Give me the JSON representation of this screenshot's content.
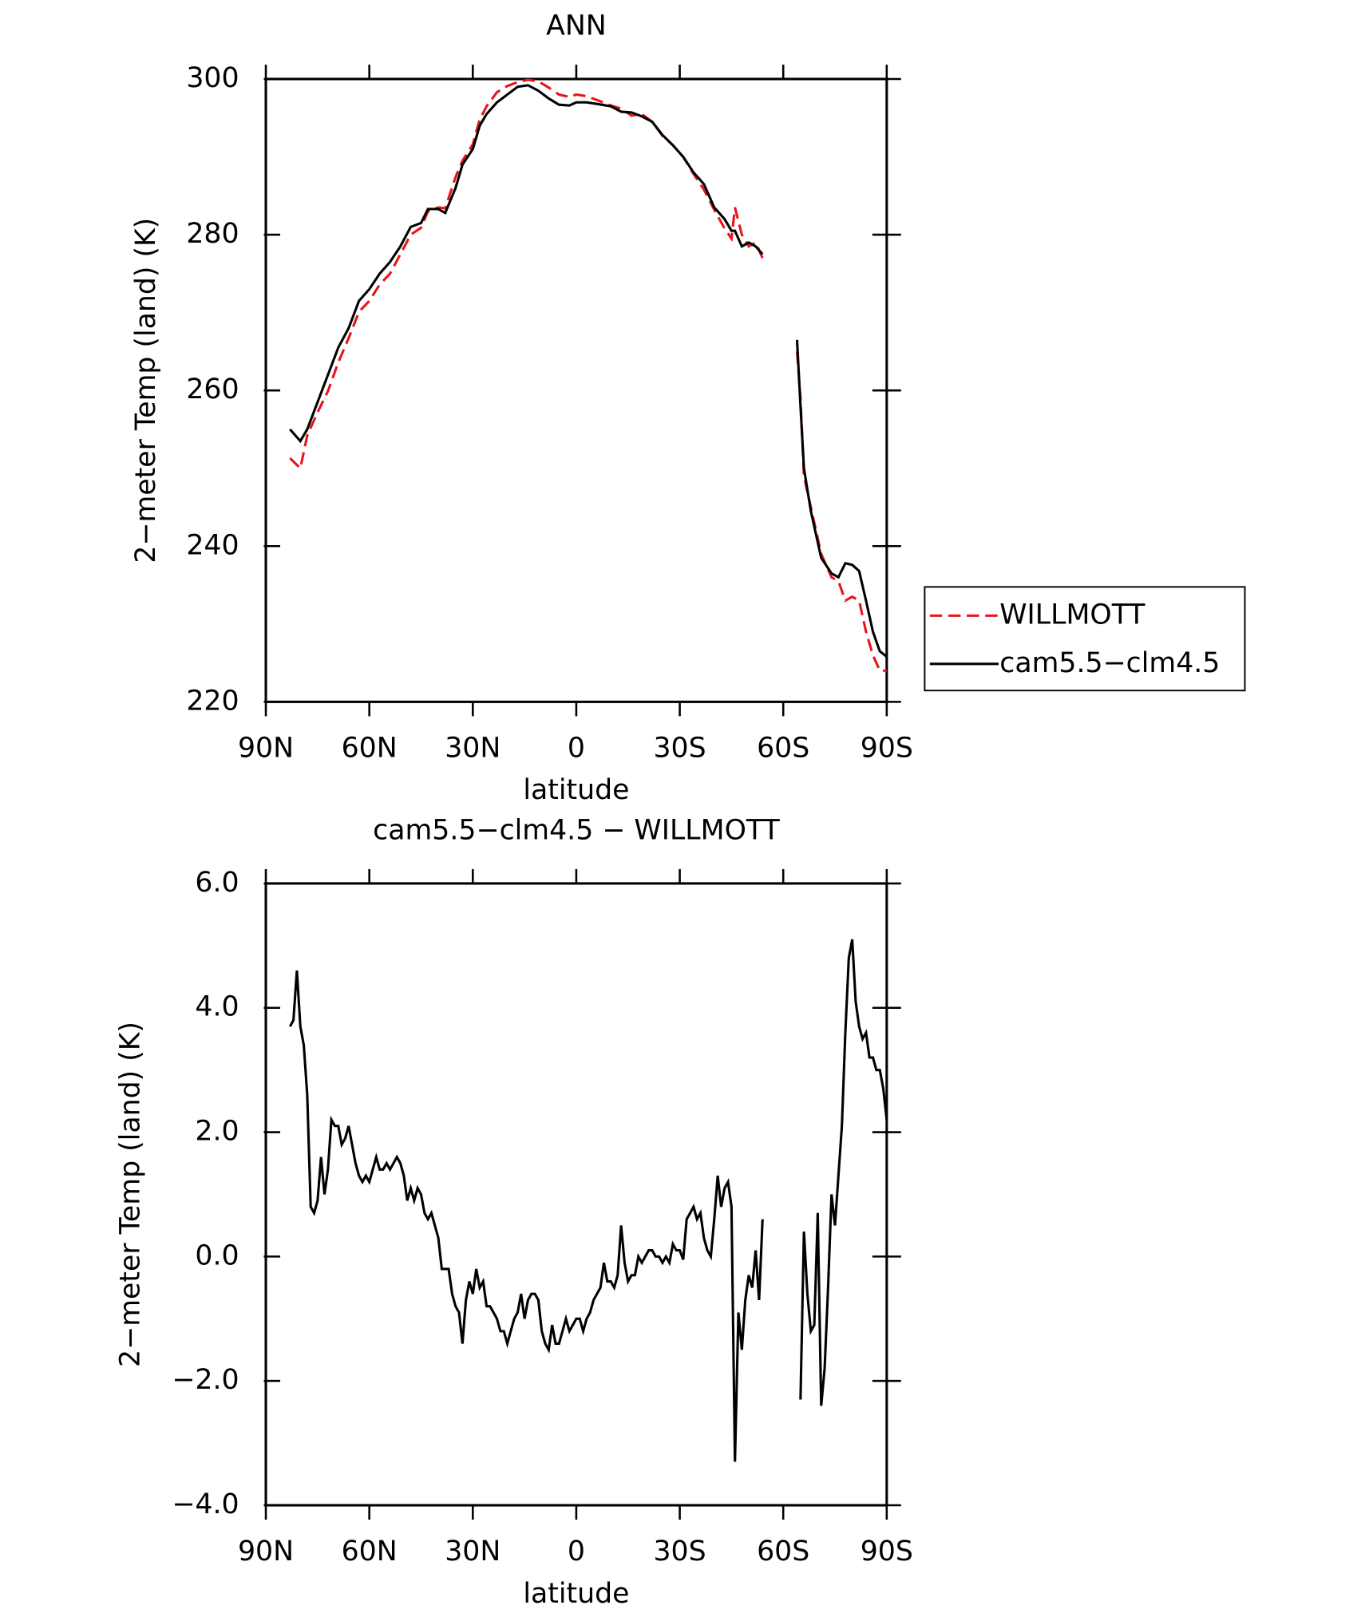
{
  "chart_data": [
    {
      "type": "line",
      "title": "ANN",
      "xlabel": "latitude",
      "ylabel": "2−meter Temp (land) (K)",
      "x": [
        83,
        80,
        78,
        75,
        72,
        69,
        66,
        63,
        60,
        57,
        54,
        51,
        48,
        45,
        43,
        40,
        38,
        35,
        33,
        30,
        28,
        26,
        23,
        20,
        17,
        14,
        11,
        8,
        5,
        2,
        0,
        -3,
        -6,
        -10,
        -13,
        -16,
        -19,
        -22,
        -25,
        -28,
        -31,
        -34,
        -37,
        -40,
        -43,
        -45,
        -46,
        -48,
        -50,
        -52,
        -54,
        -59,
        -64,
        -65,
        -66,
        -68,
        -71,
        -74,
        -76,
        -78,
        -80,
        -82,
        -84,
        -86,
        -88,
        -90
      ],
      "series": [
        {
          "name": "WILLMOTT",
          "color": "#e8141c",
          "line_style": "dashed",
          "values": [
            251.3,
            250,
            254.2,
            257.2,
            259.9,
            263.6,
            266.7,
            270.1,
            271.5,
            273.6,
            275,
            277.5,
            280,
            280.9,
            283,
            283.5,
            283.4,
            287.4,
            289.5,
            291.6,
            294.8,
            296.5,
            298.3,
            299.1,
            299.6,
            299.9,
            299.7,
            298.9,
            298,
            297.7,
            298,
            297.8,
            297.3,
            296.6,
            296.2,
            295.3,
            295.5,
            294.5,
            292.7,
            291.5,
            290,
            287.8,
            285.8,
            283.2,
            280.8,
            279.5,
            283.5,
            280,
            278.5,
            279,
            277,
            null,
            265,
            259,
            249,
            245,
            239,
            236,
            235.5,
            233,
            233.5,
            233,
            229,
            226,
            224,
            224
          ]
        },
        {
          "name": "cam5.5−clm4.5",
          "color": "#000000",
          "line_style": "solid",
          "values": [
            255,
            253.5,
            255,
            258.5,
            262,
            265.5,
            268,
            271.5,
            273,
            275,
            276.5,
            278.5,
            281,
            281.5,
            283.3,
            283.3,
            282.8,
            286,
            289,
            291,
            294,
            295.5,
            297,
            298,
            299,
            299.2,
            298.5,
            297.5,
            296.7,
            296.6,
            297,
            297,
            296.8,
            296.5,
            295.8,
            295.7,
            295.2,
            294.5,
            292.8,
            291.5,
            290,
            288,
            286.5,
            283.5,
            282,
            280.5,
            280.5,
            278.5,
            279,
            278.5,
            277.5,
            null,
            266.5,
            258,
            250,
            244.5,
            238.5,
            236.5,
            236,
            237.8,
            237.6,
            236.8,
            233,
            229,
            226.5,
            225.8
          ]
        }
      ],
      "xlim": [
        90,
        -90
      ],
      "xticks": [
        {
          "value": 90,
          "label": "90N"
        },
        {
          "value": 60,
          "label": "60N"
        },
        {
          "value": 30,
          "label": "30N"
        },
        0,
        {
          "value": -30,
          "label": "30S"
        },
        {
          "value": -60,
          "label": "60S"
        },
        {
          "value": -90,
          "label": "90S"
        }
      ],
      "ylim": [
        220,
        300
      ],
      "yticks": [
        220,
        240,
        260,
        280,
        300
      ],
      "legend": "right"
    },
    {
      "type": "line",
      "title": "cam5.5−clm4.5 − WILLMOTT",
      "xlabel": "latitude",
      "ylabel": "2−meter Temp (land) (K)",
      "x": [
        83,
        82,
        81,
        80,
        79,
        78,
        77,
        76,
        75,
        74,
        73,
        72,
        71,
        70,
        69,
        68,
        67,
        66,
        65,
        64,
        63,
        62,
        61,
        60,
        59,
        58,
        57,
        56,
        55,
        54,
        53,
        52,
        51,
        50,
        49,
        48,
        47,
        46,
        45,
        44,
        43,
        42,
        41,
        40,
        39,
        38,
        37,
        36,
        35,
        34,
        33,
        32,
        31,
        30,
        29,
        28,
        27,
        26,
        25,
        24,
        23,
        22,
        21,
        20,
        19,
        18,
        17,
        16,
        15,
        14,
        13,
        12,
        11,
        10,
        9,
        8,
        7,
        6,
        5,
        4,
        3,
        2,
        1,
        0,
        -1,
        -2,
        -3,
        -4,
        -5,
        -6,
        -7,
        -8,
        -9,
        -10,
        -11,
        -12,
        -13,
        -14,
        -15,
        -16,
        -17,
        -18,
        -19,
        -20,
        -21,
        -22,
        -23,
        -24,
        -25,
        -26,
        -27,
        -28,
        -29,
        -30,
        -31,
        -32,
        -33,
        -34,
        -35,
        -36,
        -37,
        -38,
        -39,
        -40,
        -41,
        -42,
        -43,
        -44,
        -45,
        -46,
        -47,
        -48,
        -49,
        -50,
        -51,
        -52,
        -53,
        -54,
        -60,
        -65,
        -66,
        -67,
        -68,
        -69,
        -70,
        -71,
        -72,
        -73,
        -74,
        -75,
        -76,
        -77,
        -78,
        -79,
        -80,
        -81,
        -82,
        -83,
        -84,
        -85,
        -86,
        -87,
        -88,
        -89,
        -90
      ],
      "color": "#000000",
      "values": [
        3.7,
        3.8,
        4.6,
        3.7,
        3.4,
        2.6,
        0.8,
        0.7,
        0.9,
        1.6,
        1.0,
        1.4,
        2.2,
        2.1,
        2.1,
        1.8,
        1.9,
        2.1,
        1.8,
        1.5,
        1.3,
        1.2,
        1.3,
        1.2,
        1.4,
        1.6,
        1.4,
        1.4,
        1.5,
        1.4,
        1.5,
        1.6,
        1.5,
        1.3,
        0.9,
        1.1,
        0.9,
        1.1,
        1.0,
        0.7,
        0.6,
        0.7,
        0.5,
        0.3,
        -0.2,
        -0.2,
        -0.2,
        -0.6,
        -0.8,
        -0.9,
        -1.4,
        -0.7,
        -0.4,
        -0.6,
        -0.2,
        -0.5,
        -0.4,
        -0.8,
        -0.8,
        -0.9,
        -1.0,
        -1.2,
        -1.2,
        -1.4,
        -1.2,
        -1.0,
        -0.9,
        -0.6,
        -1.0,
        -0.7,
        -0.6,
        -0.6,
        -0.7,
        -1.2,
        -1.4,
        -1.5,
        -1.1,
        -1.4,
        -1.4,
        -1.2,
        -1.0,
        -1.2,
        -1.1,
        -1.0,
        -1.0,
        -1.2,
        -1.0,
        -0.9,
        -0.7,
        -0.6,
        -0.5,
        -0.1,
        -0.4,
        -0.4,
        -0.5,
        -0.3,
        0.5,
        -0.1,
        -0.4,
        -0.3,
        -0.3,
        0,
        -0.1,
        0,
        0.1,
        0.1,
        0,
        0,
        -0.1,
        0,
        -0.1,
        0.2,
        0.1,
        0.1,
        -0.05,
        0.6,
        0.7,
        0.8,
        0.6,
        0.7,
        0.3,
        0.1,
        0,
        0.6,
        1.3,
        0.8,
        1.1,
        1.2,
        0.8,
        -3.3,
        -0.9,
        -1.5,
        -0.7,
        -0.3,
        -0.5,
        0.1,
        -0.7,
        0.6,
        null,
        -2.3,
        0.4,
        -0.6,
        -1.2,
        -1.1,
        0.7,
        -2.4,
        -1.8,
        -0.5,
        1.0,
        0.5,
        1.3,
        2.1,
        3.6,
        4.8,
        5.1,
        4.1,
        3.7,
        3.5,
        3.6,
        3.2,
        3.2,
        3.0,
        3.0,
        2.7,
        2.2
      ],
      "xlim": [
        90,
        -90
      ],
      "xticks": [
        {
          "value": 90,
          "label": "90N"
        },
        {
          "value": 60,
          "label": "60N"
        },
        {
          "value": 30,
          "label": "30N"
        },
        0,
        {
          "value": -30,
          "label": "30S"
        },
        {
          "value": -60,
          "label": "60S"
        },
        {
          "value": -90,
          "label": "90S"
        }
      ],
      "ylim": [
        -4,
        6
      ],
      "yticks": [
        {
          "value": -4,
          "label": "−4.0"
        },
        {
          "value": -2,
          "label": "−2.0"
        },
        {
          "value": 0,
          "label": "0.0"
        },
        {
          "value": 2,
          "label": "2.0"
        },
        {
          "value": 4,
          "label": "4.0"
        },
        {
          "value": 6,
          "label": "6.0"
        }
      ]
    }
  ]
}
